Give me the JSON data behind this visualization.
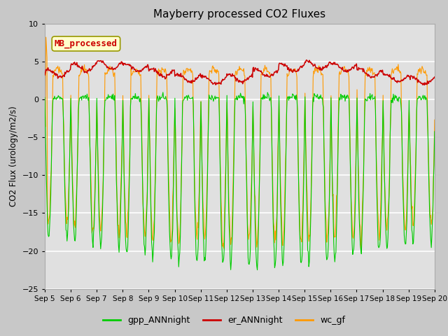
{
  "title": "Mayberry processed CO2 Fluxes",
  "ylabel": "CO2 Flux (urology/m2/s)",
  "ylim": [
    -25,
    10
  ],
  "yticks": [
    -25,
    -20,
    -15,
    -10,
    -5,
    0,
    5,
    10
  ],
  "n_days": 15,
  "points_per_day": 48,
  "legend_labels": [
    "gpp_ANNnight",
    "er_ANNnight",
    "wc_gf"
  ],
  "legend_colors": [
    "#00cc00",
    "#cc0000",
    "#ff9900"
  ],
  "inset_label": "MB_processed",
  "inset_bg": "#ffffcc",
  "inset_border": "#999900",
  "inset_text_color": "#cc0000",
  "fig_bg": "#c8c8c8",
  "plot_bg": "#e0e0e0",
  "grid_color": "#ffffff",
  "gpp_color": "#00cc00",
  "er_color": "#cc0000",
  "wc_color": "#ff9900",
  "x_tick_labels": [
    "Sep 5",
    "Sep 6",
    "Sep 7",
    "Sep 8",
    "Sep 9",
    "Sep 10",
    "Sep 11",
    "Sep 12",
    "Sep 13",
    "Sep 14",
    "Sep 15",
    "Sep 16",
    "Sep 17",
    "Sep 18",
    "Sep 19",
    "Sep 20"
  ],
  "seed": 42
}
